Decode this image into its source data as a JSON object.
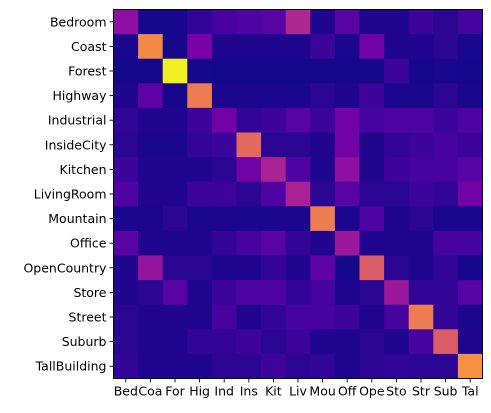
{
  "chart_data": {
    "type": "heatmap",
    "title": "",
    "xlabel": "",
    "ylabel": "",
    "colormap": "plasma",
    "vmin": 0,
    "vmax": 1,
    "grid": false,
    "legend": "none",
    "row_labels": [
      "Bedroom",
      "Coast",
      "Forest",
      "Highway",
      "Industrial",
      "InsideCity",
      "Kitchen",
      "LivingRoom",
      "Mountain",
      "Office",
      "OpenCountry",
      "Store",
      "Street",
      "Suburb",
      "TallBuilding"
    ],
    "col_labels": [
      "Bed",
      "Coa",
      "For",
      "Hig",
      "Ind",
      "Ins",
      "Kit",
      "Liv",
      "Mou",
      "Off",
      "Ope",
      "Sto",
      "Str",
      "Sub",
      "Tal"
    ],
    "values": [
      [
        0.3,
        0.02,
        0.02,
        0.08,
        0.12,
        0.14,
        0.16,
        0.4,
        0.04,
        0.16,
        0.04,
        0.04,
        0.1,
        0.06,
        0.12
      ],
      [
        0.03,
        0.72,
        0.02,
        0.24,
        0.04,
        0.04,
        0.04,
        0.04,
        0.1,
        0.03,
        0.22,
        0.04,
        0.04,
        0.06,
        0.03
      ],
      [
        0.01,
        0.01,
        0.98,
        0.02,
        0.01,
        0.01,
        0.01,
        0.01,
        0.02,
        0.01,
        0.02,
        0.1,
        0.02,
        0.03,
        0.02
      ],
      [
        0.04,
        0.18,
        0.02,
        0.68,
        0.03,
        0.03,
        0.03,
        0.03,
        0.06,
        0.04,
        0.1,
        0.03,
        0.03,
        0.06,
        0.03
      ],
      [
        0.08,
        0.04,
        0.04,
        0.1,
        0.22,
        0.08,
        0.1,
        0.16,
        0.1,
        0.22,
        0.12,
        0.14,
        0.14,
        0.1,
        0.14
      ],
      [
        0.06,
        0.03,
        0.03,
        0.08,
        0.1,
        0.62,
        0.06,
        0.06,
        0.04,
        0.22,
        0.04,
        0.08,
        0.1,
        0.12,
        0.1
      ],
      [
        0.1,
        0.04,
        0.04,
        0.04,
        0.06,
        0.22,
        0.38,
        0.14,
        0.04,
        0.3,
        0.04,
        0.1,
        0.12,
        0.12,
        0.16
      ],
      [
        0.14,
        0.04,
        0.04,
        0.1,
        0.1,
        0.06,
        0.14,
        0.38,
        0.06,
        0.16,
        0.06,
        0.06,
        0.1,
        0.08,
        0.22
      ],
      [
        0.03,
        0.03,
        0.06,
        0.03,
        0.03,
        0.03,
        0.03,
        0.03,
        0.68,
        0.03,
        0.14,
        0.04,
        0.06,
        0.03,
        0.03
      ],
      [
        0.16,
        0.04,
        0.04,
        0.04,
        0.08,
        0.12,
        0.16,
        0.08,
        0.04,
        0.34,
        0.04,
        0.04,
        0.04,
        0.12,
        0.12
      ],
      [
        0.04,
        0.32,
        0.06,
        0.06,
        0.04,
        0.04,
        0.08,
        0.04,
        0.18,
        0.02,
        0.58,
        0.06,
        0.04,
        0.08,
        0.02
      ],
      [
        0.04,
        0.06,
        0.16,
        0.04,
        0.1,
        0.14,
        0.14,
        0.08,
        0.12,
        0.04,
        0.06,
        0.34,
        0.08,
        0.08,
        0.16
      ],
      [
        0.06,
        0.04,
        0.04,
        0.04,
        0.12,
        0.04,
        0.08,
        0.12,
        0.12,
        0.1,
        0.04,
        0.12,
        0.68,
        0.08,
        0.03
      ],
      [
        0.06,
        0.04,
        0.04,
        0.08,
        0.08,
        0.1,
        0.06,
        0.1,
        0.04,
        0.04,
        0.06,
        0.04,
        0.12,
        0.58,
        0.04
      ],
      [
        0.08,
        0.04,
        0.04,
        0.04,
        0.06,
        0.06,
        0.1,
        0.06,
        0.08,
        0.04,
        0.06,
        0.08,
        0.06,
        0.06,
        0.74
      ]
    ]
  }
}
